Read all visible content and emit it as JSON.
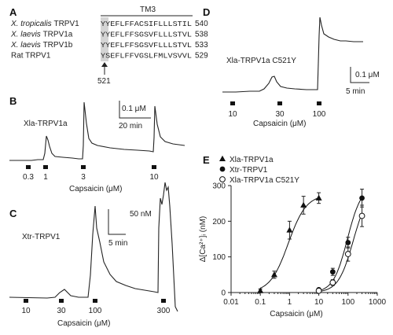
{
  "panels": {
    "A": {
      "label": "A",
      "header": "TM3",
      "rows": [
        {
          "species": "X. tropicalis",
          "name": "TRPV1",
          "seq": "YYEFLFFACSIFLLLSTIL",
          "num": "540"
        },
        {
          "species": "X. laevis",
          "name": "TRPV1a",
          "seq": "YYEFLFFSGSVFLLLSTVL",
          "num": "538"
        },
        {
          "species": "X. laevis",
          "name": "TRPV1b",
          "seq": "YYEFLFFSGSVFLLLSTVL",
          "num": "533"
        },
        {
          "species": "",
          "name": "Rat TRPV1",
          "seq": "YSEFLFFVGSLFMLVSVVL",
          "num": "529"
        }
      ],
      "arrow_label": "521"
    },
    "B": {
      "label": "B",
      "trace_label": "Xla-TRPV1a",
      "scale_y": "0.1 μM",
      "scale_x": "20 min",
      "doses": [
        "0.3",
        "1",
        "3",
        "10"
      ],
      "xlabel": "Capsaicin (μM)"
    },
    "C": {
      "label": "C",
      "trace_label": "Xtr-TRPV1",
      "scale_y": "50 nM",
      "scale_x": "5 min",
      "doses": [
        "10",
        "30",
        "100",
        "300"
      ],
      "xlabel": "Capsaicin (μM)"
    },
    "D": {
      "label": "D",
      "trace_label": "Xla-TRPV1a C521Y",
      "scale_y": "0.1 μM",
      "scale_x": "5 min",
      "doses": [
        "10",
        "30",
        "100"
      ],
      "xlabel": "Capsaicin (μM)"
    },
    "E": {
      "label": "E"
    }
  },
  "chart_data": {
    "type": "scatter",
    "xlabel": "Capsaicin (μM)",
    "ylabel": "Δ[Ca²⁺]ᵢ (nM)",
    "xscale": "log",
    "xlim": [
      0.01,
      1000
    ],
    "ylim": [
      0,
      300
    ],
    "xticks": [
      "0.01",
      "0.1",
      "1",
      "10",
      "100",
      "1000"
    ],
    "yticks": [
      "0",
      "100",
      "200",
      "300"
    ],
    "legend_position": "top-left",
    "series": [
      {
        "name": "Xla-TRPV1a",
        "marker": "triangle",
        "x": [
          0.1,
          0.3,
          1,
          3,
          10
        ],
        "y": [
          5,
          50,
          175,
          245,
          265
        ],
        "err": [
          5,
          10,
          25,
          25,
          15
        ]
      },
      {
        "name": "Xtr-TRPV1",
        "marker": "filled-circle",
        "x": [
          10,
          30,
          100,
          300
        ],
        "y": [
          8,
          58,
          140,
          265
        ],
        "err": [
          3,
          10,
          15,
          25
        ]
      },
      {
        "name": "Xla-TRPV1a C521Y",
        "marker": "open-circle",
        "x": [
          10,
          30,
          100,
          300
        ],
        "y": [
          5,
          28,
          108,
          215
        ],
        "err": [
          3,
          8,
          20,
          30
        ]
      }
    ]
  }
}
